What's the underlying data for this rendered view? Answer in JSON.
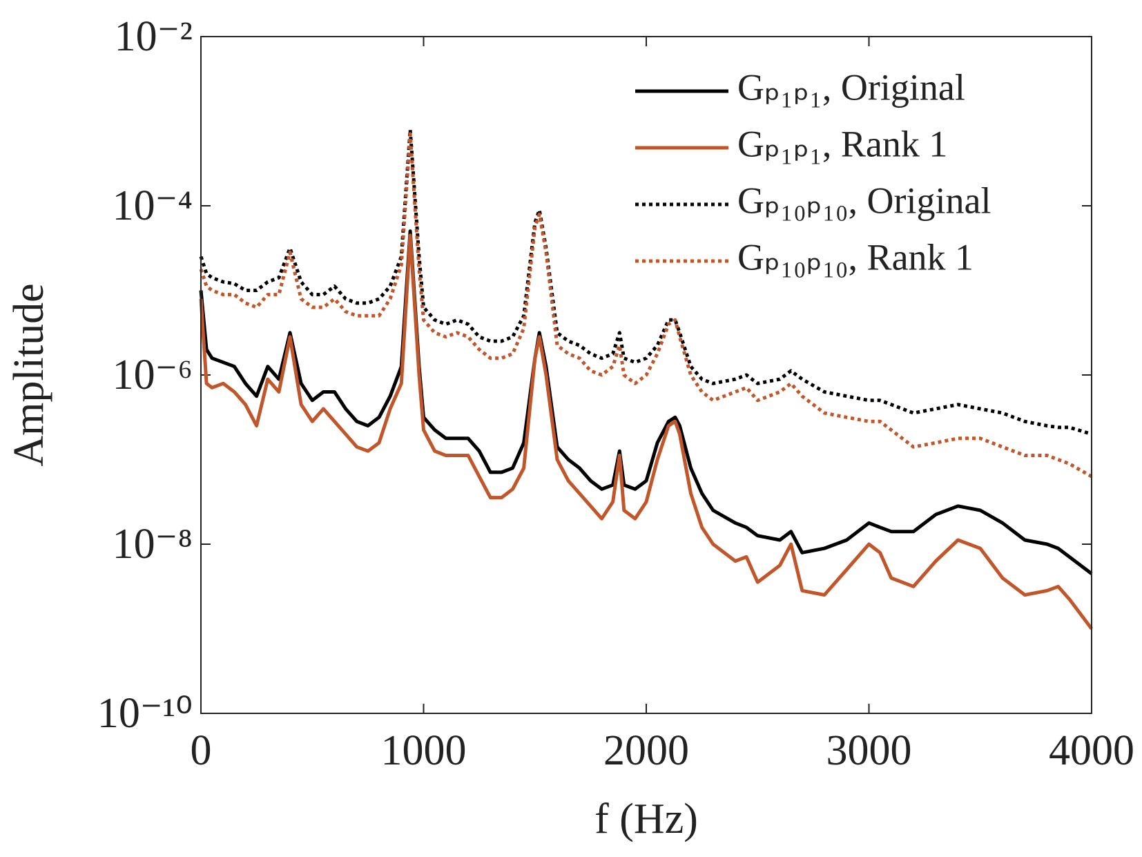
{
  "chart_data": {
    "type": "line",
    "xlabel": "f (Hz)",
    "ylabel": "Amplitude",
    "xlim": [
      0,
      4000
    ],
    "xticks": [
      0,
      1000,
      2000,
      3000,
      4000
    ],
    "ylim": [
      1e-10,
      0.01
    ],
    "log_y": true,
    "yticks": [
      {
        "value": 1e-10,
        "label": "10⁻¹⁰"
      },
      {
        "value": 1e-08,
        "label": "10⁻⁸"
      },
      {
        "value": 1e-06,
        "label": "10⁻⁶"
      },
      {
        "value": 0.0001,
        "label": "10⁻⁴"
      },
      {
        "value": 0.01,
        "label": "10⁻²"
      }
    ],
    "legend": "upper right",
    "x": [
      0,
      25,
      50,
      100,
      150,
      200,
      250,
      300,
      350,
      400,
      450,
      500,
      550,
      600,
      650,
      700,
      750,
      800,
      850,
      900,
      940,
      980,
      1000,
      1050,
      1100,
      1150,
      1200,
      1250,
      1300,
      1350,
      1400,
      1450,
      1500,
      1520,
      1550,
      1600,
      1650,
      1700,
      1750,
      1800,
      1850,
      1880,
      1900,
      1950,
      2000,
      2050,
      2100,
      2130,
      2150,
      2200,
      2250,
      2300,
      2400,
      2450,
      2500,
      2600,
      2650,
      2700,
      2800,
      2900,
      3000,
      3050,
      3100,
      3200,
      3300,
      3400,
      3500,
      3600,
      3700,
      3800,
      3850,
      3900,
      4000
    ],
    "series": [
      {
        "name": "Gₚ₁ₚ₁, Original",
        "color": "#000000",
        "dashed": false,
        "values": [
          1e-05,
          2e-06,
          1.58e-06,
          1.41e-06,
          1.26e-06,
          7.94e-07,
          5.62e-07,
          1.26e-06,
          8.91e-07,
          3.16e-06,
          7.94e-07,
          5.01e-07,
          6.31e-07,
          6.31e-07,
          3.98e-07,
          2.82e-07,
          2.51e-07,
          3.16e-07,
          5.62e-07,
          1.26e-06,
          5.01e-05,
          1.26e-06,
          3.16e-07,
          2.24e-07,
          1.78e-07,
          1.78e-07,
          1.78e-07,
          1.26e-07,
          7.08e-08,
          7.08e-08,
          7.94e-08,
          1.58e-07,
          1.58e-06,
          3.16e-06,
          1.26e-06,
          1.41e-07,
          1e-07,
          7.94e-08,
          5.62e-08,
          4.47e-08,
          5.01e-08,
          1.26e-07,
          5.01e-08,
          4.47e-08,
          5.62e-08,
          1.58e-07,
          2.82e-07,
          3.16e-07,
          2.51e-07,
          7.94e-08,
          3.98e-08,
          2.51e-08,
          1.78e-08,
          1.58e-08,
          1.26e-08,
          1.12e-08,
          1.41e-08,
          7.94e-09,
          8.91e-09,
          1.12e-08,
          1.78e-08,
          1.58e-08,
          1.41e-08,
          1.41e-08,
          2.24e-08,
          2.82e-08,
          2.51e-08,
          1.78e-08,
          1.12e-08,
          1e-08,
          8.91e-09,
          7.08e-09,
          4.47e-09
        ]
      },
      {
        "name": "Gₚ₁ₚ₁, Rank 1",
        "color": "#c0562a",
        "dashed": false,
        "values": [
          7.94e-06,
          7.94e-07,
          7.08e-07,
          7.94e-07,
          6.31e-07,
          4.47e-07,
          2.51e-07,
          8.91e-07,
          6.31e-07,
          2.82e-06,
          4.47e-07,
          2.82e-07,
          3.98e-07,
          2.82e-07,
          2e-07,
          1.41e-07,
          1.26e-07,
          1.58e-07,
          3.98e-07,
          7.94e-07,
          4.47e-05,
          1e-06,
          2.24e-07,
          1.26e-07,
          1.12e-07,
          1.12e-07,
          1.12e-07,
          6.31e-08,
          3.55e-08,
          3.55e-08,
          4.47e-08,
          7.94e-08,
          1.58e-06,
          2.82e-06,
          1e-06,
          1e-07,
          5.62e-08,
          3.98e-08,
          2.82e-08,
          2e-08,
          3.16e-08,
          1.12e-07,
          2.51e-08,
          2e-08,
          3.16e-08,
          1e-07,
          2.51e-07,
          2.82e-07,
          2e-07,
          3.98e-08,
          1.58e-08,
          1e-08,
          6.31e-09,
          7.08e-09,
          3.55e-09,
          5.62e-09,
          1e-08,
          2.82e-09,
          2.51e-09,
          5.01e-09,
          1e-08,
          7.94e-09,
          3.98e-09,
          3.16e-09,
          6.31e-09,
          1.12e-08,
          8.91e-09,
          3.98e-09,
          2.51e-09,
          2.82e-09,
          3.16e-09,
          2.24e-09,
          1e-09
        ]
      },
      {
        "name": "Gₚ₁₀ₚ₁₀, Original",
        "color": "#000000",
        "dashed": true,
        "values": [
          2.51e-05,
          1.58e-05,
          1.41e-05,
          1.26e-05,
          1.2e-05,
          1e-05,
          1e-05,
          1.26e-05,
          1.41e-05,
          3.16e-05,
          1.26e-05,
          8.91e-06,
          8.91e-06,
          1.12e-05,
          7.94e-06,
          7.08e-06,
          7.08e-06,
          7.94e-06,
          1.12e-05,
          2.51e-05,
          0.000794,
          2.51e-05,
          6.31e-06,
          4.47e-06,
          3.98e-06,
          4.47e-06,
          3.98e-06,
          2.82e-06,
          2.51e-06,
          2.51e-06,
          2.82e-06,
          5.01e-06,
          6.31e-05,
          8.91e-05,
          3.16e-05,
          3.16e-06,
          2.51e-06,
          2.24e-06,
          1.78e-06,
          1.58e-06,
          1.78e-06,
          3.16e-06,
          1.58e-06,
          1.41e-06,
          1.58e-06,
          2.24e-06,
          4.47e-06,
          4.47e-06,
          3.16e-06,
          1.26e-06,
          8.91e-07,
          7.94e-07,
          8.91e-07,
          1e-06,
          7.94e-07,
          8.91e-07,
          1.12e-06,
          8.91e-07,
          6.31e-07,
          5.62e-07,
          5.01e-07,
          5.01e-07,
          4.47e-07,
          3.55e-07,
          3.98e-07,
          4.47e-07,
          3.98e-07,
          3.55e-07,
          2.82e-07,
          2.51e-07,
          2.4e-07,
          2.4e-07,
          2e-07
        ]
      },
      {
        "name": "Gₚ₁₀ₚ₁₀, Rank 1",
        "color": "#c0562a",
        "dashed": true,
        "values": [
          1.78e-05,
          1.12e-05,
          1e-05,
          8.91e-06,
          8.91e-06,
          7.08e-06,
          6.31e-06,
          8.91e-06,
          8.91e-06,
          2.82e-05,
          7.94e-06,
          6.31e-06,
          6.31e-06,
          7.94e-06,
          5.62e-06,
          5.01e-06,
          5.01e-06,
          5.01e-06,
          7.94e-06,
          2e-05,
          0.000708,
          1.78e-05,
          4.47e-06,
          3.16e-06,
          2.82e-06,
          3.16e-06,
          2.82e-06,
          2e-06,
          1.58e-06,
          1.58e-06,
          1.78e-06,
          3.55e-06,
          5.62e-05,
          7.94e-05,
          2.82e-05,
          2.24e-06,
          1.78e-06,
          1.58e-06,
          1.12e-06,
          1e-06,
          1.26e-06,
          2.24e-06,
          1e-06,
          7.94e-07,
          1e-06,
          1.78e-06,
          3.98e-06,
          4.47e-06,
          2.82e-06,
          1e-06,
          6.31e-07,
          5.01e-07,
          6.31e-07,
          7.08e-07,
          5.01e-07,
          6.31e-07,
          7.94e-07,
          5.62e-07,
          3.55e-07,
          3.16e-07,
          2.82e-07,
          2.82e-07,
          2.24e-07,
          1.41e-07,
          1.58e-07,
          1.78e-07,
          1.78e-07,
          1.41e-07,
          1.12e-07,
          1.12e-07,
          1e-07,
          8.91e-08,
          6.31e-08
        ]
      }
    ]
  }
}
